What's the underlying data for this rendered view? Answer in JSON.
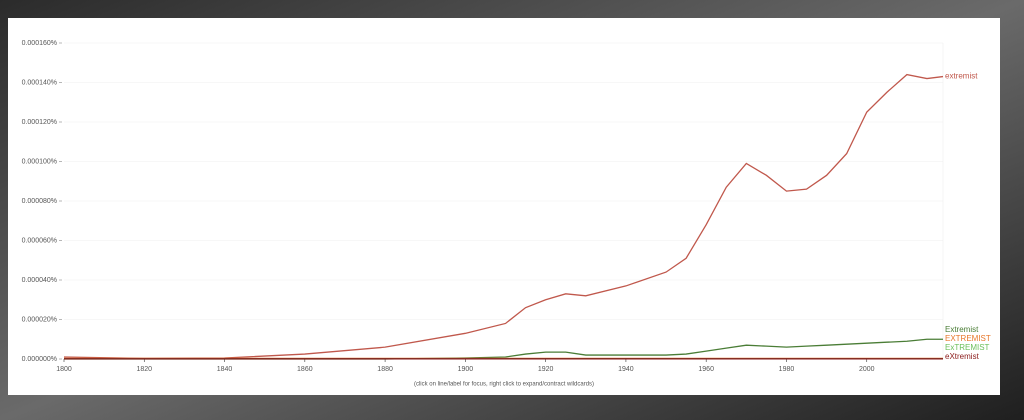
{
  "chart_data": {
    "type": "line",
    "note": "(click on line/label for focus, right click to expand/contract wildcards)",
    "x": [
      1800,
      1820,
      1840,
      1860,
      1880,
      1900,
      1910,
      1915,
      1920,
      1925,
      1930,
      1940,
      1950,
      1955,
      1960,
      1965,
      1970,
      1975,
      1980,
      1985,
      1990,
      1995,
      2000,
      2005,
      2010,
      2015,
      2019
    ],
    "xlim": [
      1800,
      2019
    ],
    "xticks": [
      1800,
      1820,
      1840,
      1860,
      1880,
      1900,
      1920,
      1940,
      1960,
      1980,
      2000
    ],
    "ylim": [
      0,
      0.00016
    ],
    "yticks": [
      {
        "value": 0,
        "label": "0.000000%"
      },
      {
        "value": 2e-05,
        "label": "0.000020%"
      },
      {
        "value": 4e-05,
        "label": "0.000040%"
      },
      {
        "value": 6e-05,
        "label": "0.000060%"
      },
      {
        "value": 8e-05,
        "label": "0.000080%"
      },
      {
        "value": 0.0001,
        "label": "0.000100%"
      },
      {
        "value": 0.00012,
        "label": "0.000120%"
      },
      {
        "value": 0.00014,
        "label": "0.000140%"
      },
      {
        "value": 0.00016,
        "label": "0.000160%"
      }
    ],
    "grid": true,
    "series": [
      {
        "name": "extremist",
        "color": "#c0584c",
        "values": [
          1e-06,
          3e-07,
          5e-07,
          2.5e-06,
          6e-06,
          1.3e-05,
          1.8e-05,
          2.6e-05,
          3e-05,
          3.3e-05,
          3.2e-05,
          3.7e-05,
          4.4e-05,
          5.1e-05,
          6.8e-05,
          8.7e-05,
          9.9e-05,
          9.3e-05,
          8.5e-05,
          8.6e-05,
          9.3e-05,
          0.000104,
          0.000125,
          0.000135,
          0.000144,
          0.000142,
          0.000143
        ]
      },
      {
        "name": "Extremist",
        "color": "#4a7d36",
        "values": [
          0,
          0,
          0,
          0,
          0,
          5e-07,
          1e-06,
          2.5e-06,
          3.5e-06,
          3.5e-06,
          2e-06,
          2e-06,
          2e-06,
          2.5e-06,
          4e-06,
          5.5e-06,
          7e-06,
          6.5e-06,
          6e-06,
          6.5e-06,
          7e-06,
          7.5e-06,
          8e-06,
          8.5e-06,
          9e-06,
          1e-05,
          1e-05
        ]
      },
      {
        "name": "EXTREMIST",
        "color": "#e8772a",
        "values": [
          3e-07,
          3e-07,
          3e-07,
          3e-07,
          3e-07,
          3e-07,
          3e-07,
          3e-07,
          3e-07,
          3e-07,
          3e-07,
          3e-07,
          3e-07,
          3e-07,
          3e-07,
          3e-07,
          3e-07,
          3e-07,
          3e-07,
          3e-07,
          3e-07,
          3e-07,
          3e-07,
          3e-07,
          3e-07,
          3e-07,
          3e-07
        ]
      },
      {
        "name": "ExTREMIST",
        "color": "#6abf5a",
        "values": [
          2e-07,
          2e-07,
          2e-07,
          2e-07,
          2e-07,
          2e-07,
          2e-07,
          2e-07,
          2e-07,
          2e-07,
          2e-07,
          2e-07,
          2e-07,
          2e-07,
          2e-07,
          2e-07,
          2e-07,
          2e-07,
          2e-07,
          2e-07,
          2e-07,
          2e-07,
          2e-07,
          2e-07,
          2e-07,
          2e-07,
          2e-07
        ]
      },
      {
        "name": "eXtremist",
        "color": "#8b1a1a",
        "values": [
          1e-07,
          1e-07,
          1e-07,
          1e-07,
          1e-07,
          1e-07,
          1e-07,
          1e-07,
          1e-07,
          1e-07,
          1e-07,
          1e-07,
          1e-07,
          1e-07,
          1e-07,
          1e-07,
          1e-07,
          1e-07,
          1e-07,
          1e-07,
          1e-07,
          1e-07,
          1e-07,
          1e-07,
          1e-07,
          1e-07,
          1e-07
        ]
      }
    ]
  }
}
